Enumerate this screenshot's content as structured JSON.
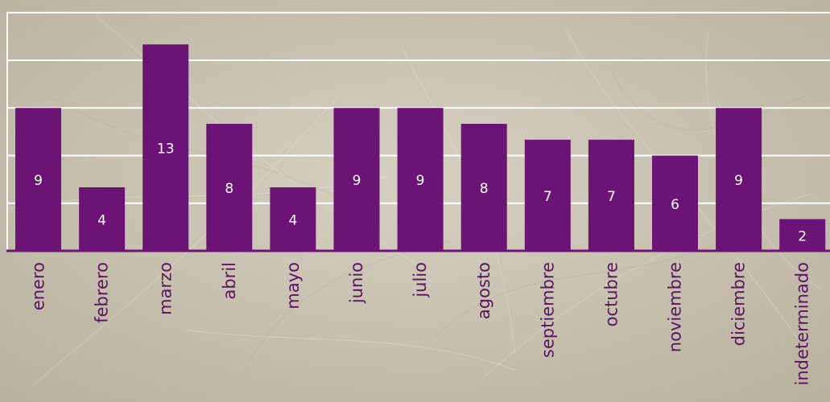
{
  "chart_data": {
    "type": "bar",
    "categories": [
      "enero",
      "febrero",
      "marzo",
      "abril",
      "mayo",
      "junio",
      "julio",
      "agosto",
      "septiembre",
      "octubre",
      "noviembre",
      "diciembre",
      "indeterminado"
    ],
    "values": [
      9,
      4,
      13,
      8,
      4,
      9,
      9,
      8,
      7,
      7,
      6,
      9,
      2
    ],
    "ylim": [
      0,
      15
    ],
    "grid": true,
    "legend": "none",
    "data_labels": true
  },
  "colors": {
    "bar": "#6c1475",
    "label_text": "#ffffff",
    "category_text": "#5a1460",
    "gridline": "#ffffff",
    "axis_line": "#6c1475",
    "background": "#cbc4b3"
  }
}
